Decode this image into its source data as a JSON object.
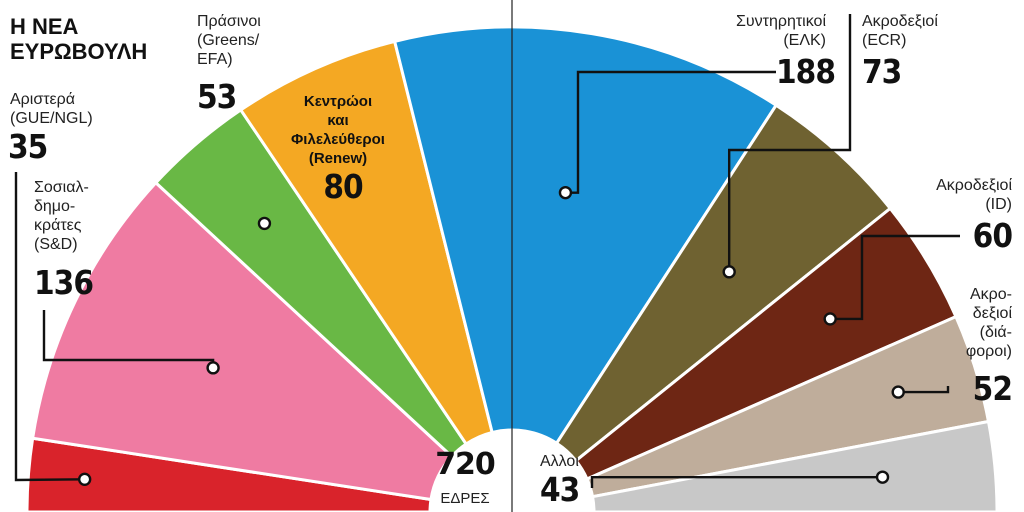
{
  "chart_data": {
    "type": "pie",
    "title": "Η ΝΕΑ ΕΥΡΩΒΟΥΛΗ",
    "total": {
      "value": "720",
      "label": "ΕΔΡΕΣ"
    },
    "groups": [
      {
        "key": "gue",
        "name": "Αριστερά",
        "abbr": "(GUE/NGL)",
        "seats": 35,
        "color": "#d9232b"
      },
      {
        "key": "sd",
        "name": "Σοσιαλ-δημο-κράτες",
        "abbr": "(S&D)",
        "seats": 136,
        "color": "#ef7ba2"
      },
      {
        "key": "greens",
        "name": "Πράσινοι",
        "abbr": "(Greens/EFA)",
        "seats": 53,
        "color": "#69b845"
      },
      {
        "key": "renew",
        "name": "Κεντρώοι και Φιλελεύθεροι",
        "abbr": "(Renew)",
        "seats": 80,
        "color": "#f4a823"
      },
      {
        "key": "epp",
        "name": "Συντηρητικοί",
        "abbr": "(ΕΛΚ)",
        "seats": 188,
        "color": "#1a92d6"
      },
      {
        "key": "ecr",
        "name": "Ακροδεξιοί",
        "abbr": "(ECR)",
        "seats": 73,
        "color": "#6f6231"
      },
      {
        "key": "id",
        "name": "Ακροδεξιοί",
        "abbr": "(ID)",
        "seats": 60,
        "color": "#6e2614"
      },
      {
        "key": "ni",
        "name": "Ακρο-δεξιοί (διά-φοροι)",
        "abbr": "",
        "seats": 52,
        "color": "#bfad9b"
      },
      {
        "key": "others",
        "name": "Αλλοι",
        "abbr": "",
        "seats": 43,
        "color": "#c8c8c8"
      }
    ]
  },
  "labels": {
    "title_line1": "Η ΝΕΑ",
    "title_line2": "ΕΥΡΩΒΟΥΛΗ",
    "gue_line1": "Αριστερά",
    "gue_line2": "(GUE/NGL)",
    "gue_seats": "35",
    "sd_line1": "Σοσιαλ-",
    "sd_line2": "δημο-",
    "sd_line3": "κράτες",
    "sd_line4": "(S&D)",
    "sd_seats": "136",
    "greens_line1": "Πράσινοι",
    "greens_line2": "(Greens/",
    "greens_line3": "EFA)",
    "greens_seats": "53",
    "renew_line1": "Κεντρώοι",
    "renew_line2": "και",
    "renew_line3": "Φιλελεύθεροι",
    "renew_line4": "(Renew)",
    "renew_seats": "80",
    "epp_line1": "Συντηρητικοί",
    "epp_line2": "(ΕΛΚ)",
    "epp_seats": "188",
    "ecr_line1": "Ακροδεξιοί",
    "ecr_line2": "(ECR)",
    "ecr_seats": "73",
    "id_line1": "Ακροδεξιοί",
    "id_line2": "(ID)",
    "id_seats": "60",
    "ni_line1": "Ακρο-",
    "ni_line2": "δεξιοί",
    "ni_line3": "(διά-",
    "ni_line4": "φοροι)",
    "ni_seats": "52",
    "others_line1": "Αλλοι",
    "others_seats": "43",
    "total_value": "720",
    "total_label": "ΕΔΡΕΣ"
  }
}
